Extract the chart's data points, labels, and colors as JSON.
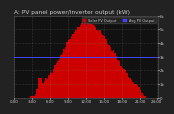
{
  "title": "A: PV panel power/Inverter output (kW)",
  "bg_color": "#222222",
  "plot_bg": "#111111",
  "bar_color": "#cc0000",
  "bar_edge": "#cc0000",
  "line_color": "#4444ff",
  "line_value": 2500,
  "ylim": [
    0,
    6000
  ],
  "xlim": [
    -0.5,
    95.5
  ],
  "num_bars": 96,
  "legend_labels": [
    "Solar PV Output",
    "Avg PV Output"
  ],
  "legend_colors": [
    "#cc0000",
    "#4444ff"
  ],
  "ytick_values": [
    0,
    1000,
    2000,
    3000,
    4000,
    5000,
    6000
  ],
  "ytick_labels": [
    "0",
    "1k",
    "2k",
    "3k",
    "4k",
    "5k",
    "6k"
  ],
  "title_fontsize": 4.2,
  "tick_fontsize": 2.8,
  "grid_color": "#888888",
  "grid_style": ":"
}
